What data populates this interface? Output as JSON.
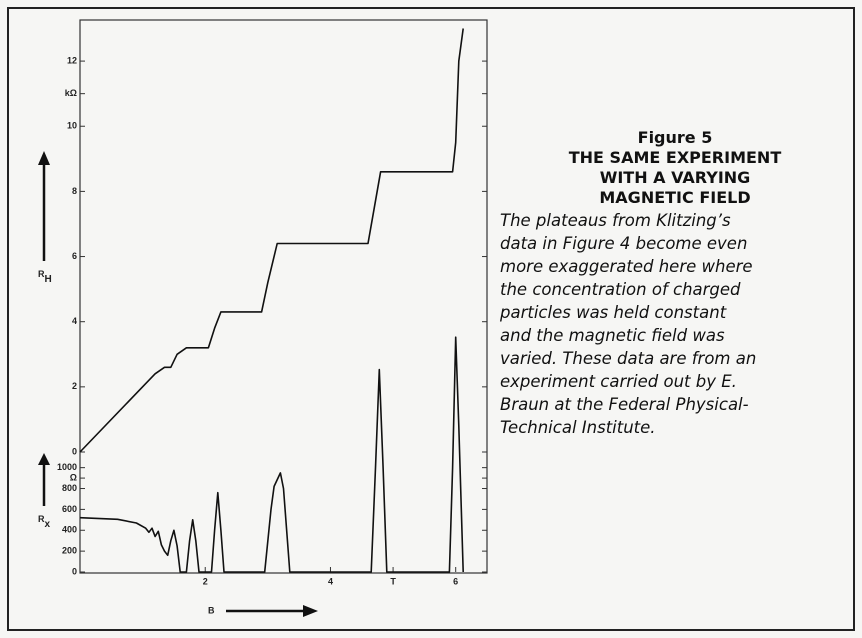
{
  "chart_data": [
    {
      "type": "line",
      "y_label": "R",
      "y_label_sub": "H",
      "x": [
        0,
        1.2,
        1.35,
        1.45,
        1.55,
        1.7,
        2.05,
        2.15,
        2.25,
        2.9,
        3.0,
        3.15,
        4.6,
        4.7,
        4.8,
        5.95,
        6.0,
        6.05,
        6.12
      ],
      "values": [
        0,
        2.4,
        2.6,
        2.6,
        3.0,
        3.2,
        3.2,
        3.8,
        4.3,
        4.3,
        5.2,
        6.4,
        6.4,
        7.5,
        8.6,
        8.6,
        9.5,
        12.0,
        13.0
      ],
      "color": "#111",
      "xlim": [
        0,
        6.5
      ],
      "ylim": [
        0,
        13.2
      ],
      "yticks": [
        0,
        2,
        4,
        6,
        8,
        10,
        {
          "value": 11,
          "label": "kΩ"
        },
        12
      ]
    },
    {
      "type": "line",
      "y_label": "R",
      "y_label_sub": "x",
      "x_label": "B",
      "x": [
        0,
        0.6,
        0.9,
        1.05,
        1.1,
        1.15,
        1.2,
        1.25,
        1.3,
        1.35,
        1.4,
        1.45,
        1.5,
        1.55,
        1.6,
        1.7,
        1.75,
        1.8,
        1.85,
        1.9,
        2.1,
        2.15,
        2.2,
        2.25,
        2.3,
        2.95,
        3.05,
        3.1,
        3.2,
        3.25,
        3.35,
        4.65,
        4.72,
        4.78,
        4.84,
        4.9,
        5.9,
        5.95,
        6.0,
        6.05,
        6.12
      ],
      "values": [
        520,
        505,
        470,
        420,
        380,
        420,
        340,
        390,
        260,
        200,
        160,
        300,
        400,
        250,
        0,
        0,
        300,
        500,
        300,
        0,
        0,
        400,
        760,
        400,
        0,
        0,
        600,
        820,
        950,
        800,
        0,
        0,
        1000,
        1940,
        1000,
        0,
        0,
        1000,
        2250,
        1400,
        0
      ],
      "color": "#111",
      "xlim": [
        0,
        6.5
      ],
      "ylim": [
        0,
        1150
      ],
      "xticks": [
        2,
        4,
        {
          "value": 5,
          "label": "T"
        },
        6
      ],
      "yticks": [
        0,
        200,
        400,
        600,
        800,
        {
          "value": 900,
          "label": "Ω"
        },
        1000
      ]
    }
  ],
  "figure_caption": {
    "title_lines": [
      "Figure 5",
      "THE SAME EXPERIMENT",
      "WITH A VARYING",
      "MAGNETIC FIELD"
    ],
    "body_lines": [
      "The plateaus from Klitzing’s",
      "data in Figure 4 become even",
      "more exaggerated here where",
      "the concentration of charged",
      "particles was held constant",
      "and the magnetic field was",
      "varied. These data are from an",
      "experiment carried out by E.",
      "Braun at the Federal Physical-",
      "Technical Institute."
    ]
  }
}
